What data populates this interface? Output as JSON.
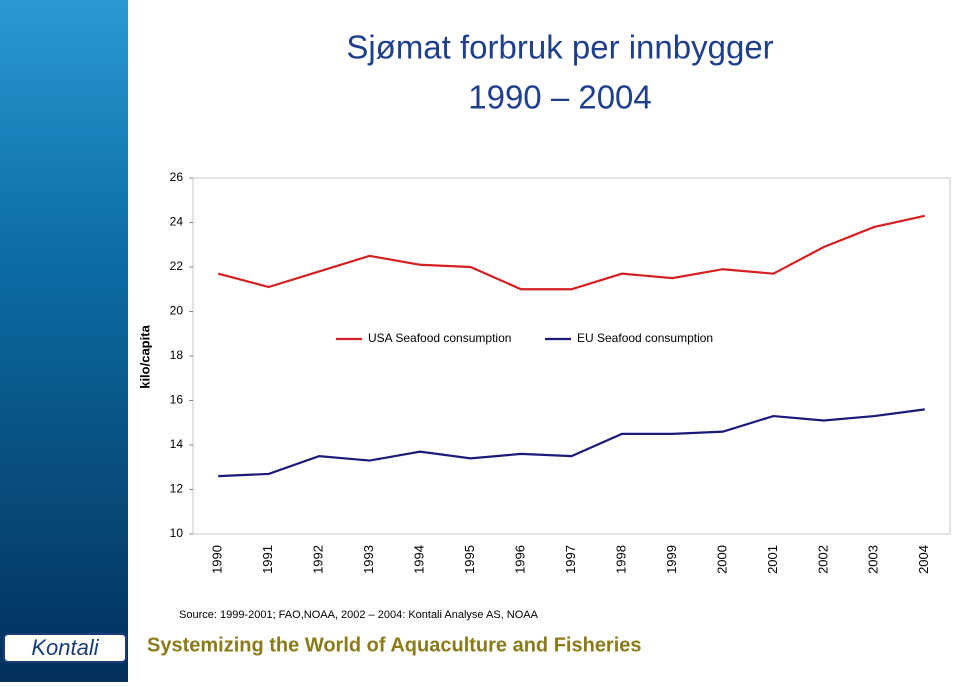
{
  "chart_data": {
    "type": "line",
    "title": "Sjømat forbruk per innbygger",
    "subtitle": "1990 – 2004",
    "y_label": "kilo/capita",
    "source": "Source: 1999-2001; FAO,NOAA,  2002 – 2004: Kontali Analyse AS, NOAA",
    "categories": [
      "1990",
      "1991",
      "1992",
      "1993",
      "1994",
      "1995",
      "1996",
      "1997",
      "1998",
      "1999",
      "2000",
      "2001",
      "2002",
      "2003",
      "2004"
    ],
    "series": [
      {
        "name": "USA Seafood consumption",
        "color": "#d42020",
        "values": [
          21.7,
          21.1,
          21.8,
          22.5,
          22.1,
          22.0,
          21.0,
          21.0,
          21.7,
          21.5,
          21.9,
          21.7,
          22.9,
          23.8,
          24.3
        ]
      },
      {
        "name": "EU  Seafood consumption",
        "color": "#1a1a7a",
        "values": [
          12.6,
          12.7,
          13.5,
          13.3,
          13.7,
          13.4,
          13.6,
          13.5,
          14.5,
          14.5,
          14.6,
          15.3,
          15.1,
          15.3,
          15.6
        ]
      }
    ],
    "ylim": [
      10,
      26
    ],
    "yticks": [
      10,
      12,
      14,
      16,
      18,
      20,
      22,
      24,
      26
    ],
    "grid": false,
    "legend": "top"
  },
  "footer": {
    "logo": "Kontali",
    "tagline": "Systemizing the World of Aquaculture and Fisheries"
  }
}
